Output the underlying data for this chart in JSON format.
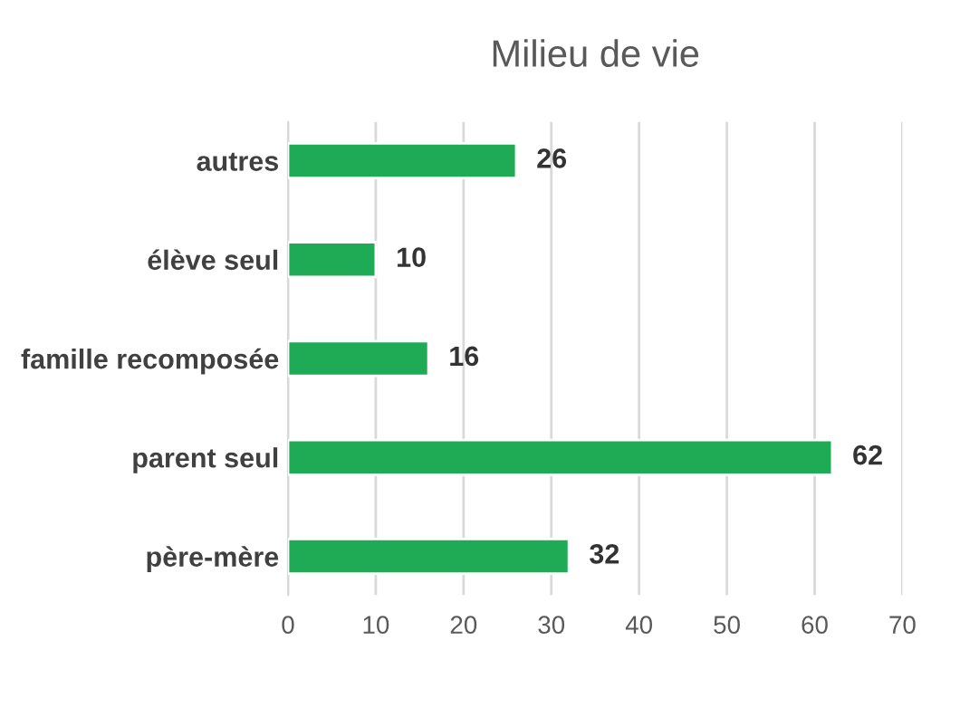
{
  "chart_data": {
    "type": "bar",
    "orientation": "horizontal",
    "title": "Milieu de vie",
    "categories": [
      "autres",
      "élève seul",
      "famille recomposée",
      "parent seul",
      "père-mère"
    ],
    "values": [
      26,
      10,
      16,
      62,
      32
    ],
    "color": "#1faa55",
    "data_labels": true,
    "xlim": [
      0,
      70
    ],
    "xticks": [
      0,
      10,
      20,
      30,
      40,
      50,
      60,
      70
    ],
    "grid": "x"
  }
}
